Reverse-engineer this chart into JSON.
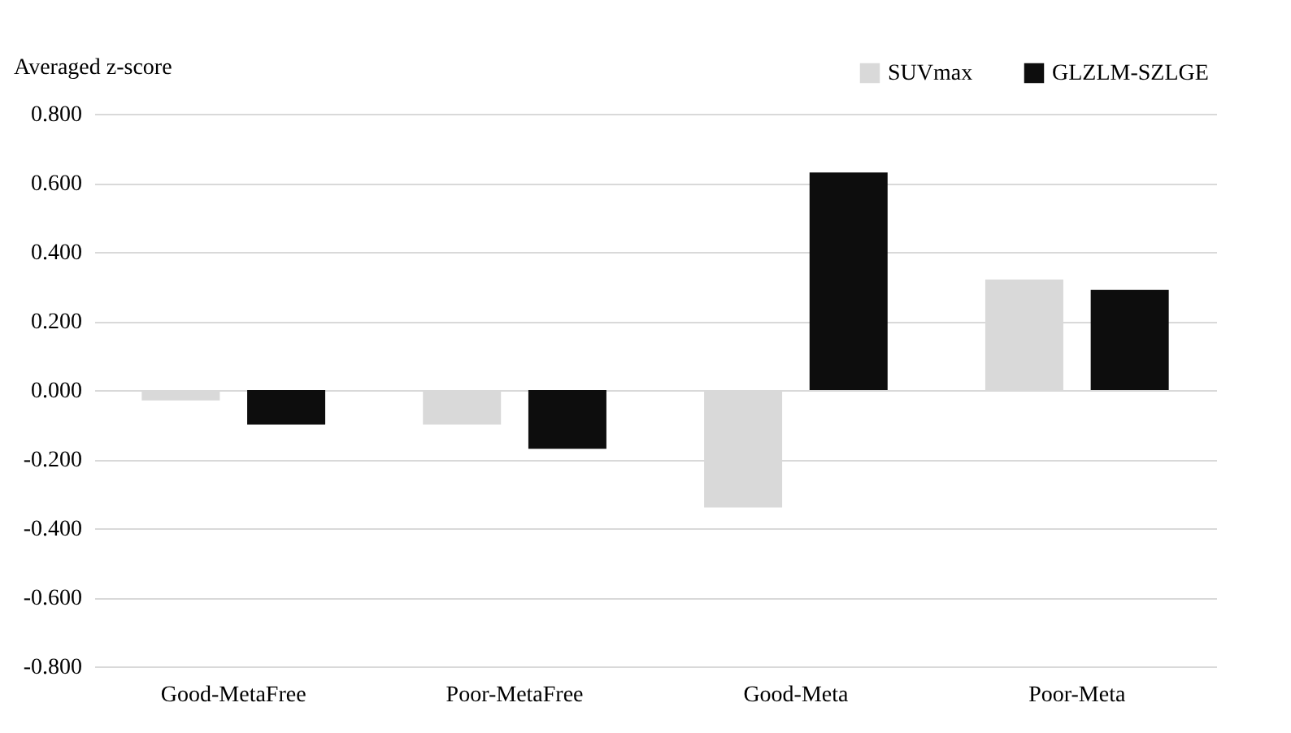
{
  "chart_data": {
    "type": "bar",
    "ylabel": "Averaged z-score",
    "categories": [
      "Good-MetaFree",
      "Poor-MetaFree",
      "Good-Meta",
      "Poor-Meta"
    ],
    "series": [
      {
        "name": "SUVmax",
        "color": "#d9d9d9",
        "values": [
          -0.03,
          -0.1,
          -0.34,
          0.32
        ]
      },
      {
        "name": "GLZLM-SZLGE",
        "color": "#0d0d0d",
        "values": [
          -0.1,
          -0.17,
          0.63,
          0.29
        ]
      }
    ],
    "ylim": [
      -0.8,
      0.8
    ],
    "yticks": [
      {
        "value": -0.8,
        "label": "-0.800"
      },
      {
        "value": -0.6,
        "label": "-0.600"
      },
      {
        "value": -0.4,
        "label": "-0.400"
      },
      {
        "value": -0.2,
        "label": "-0.200"
      },
      {
        "value": 0,
        "label": "0.000"
      },
      {
        "value": 0.2,
        "label": "0.200"
      },
      {
        "value": 0.4,
        "label": "0.400"
      },
      {
        "value": 0.6,
        "label": "0.600"
      },
      {
        "value": 0.8,
        "label": "0.800"
      }
    ],
    "grid": "y",
    "legend": "top right"
  }
}
